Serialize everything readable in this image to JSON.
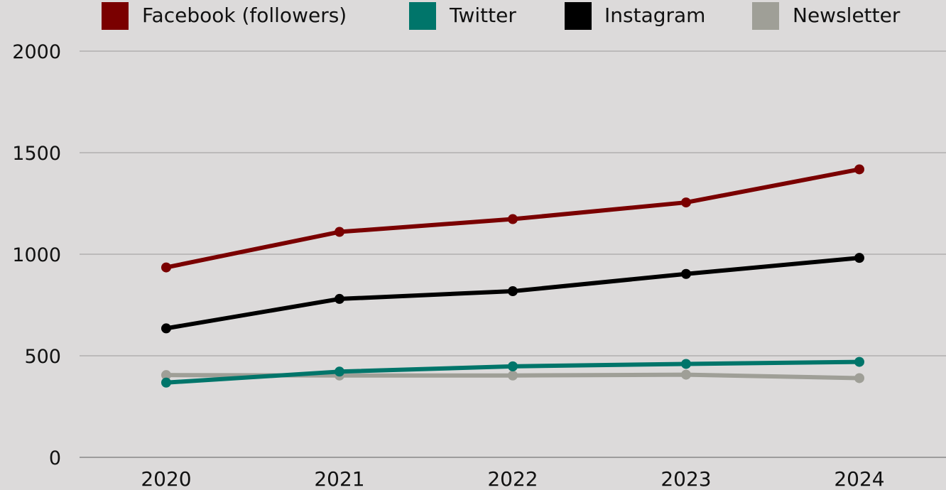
{
  "colors": {
    "background": "#dcdada",
    "gridline": "#a9a7a7",
    "baseline": "#777777",
    "text": "#111111"
  },
  "chart_data": {
    "type": "line",
    "x": [
      "2020",
      "2021",
      "2022",
      "2023",
      "2024"
    ],
    "ylim": [
      0,
      2000
    ],
    "yticks": [
      0,
      500,
      1000,
      1500,
      2000
    ],
    "grid": true,
    "legend_position": "top",
    "series": [
      {
        "name": "Facebook (followers)",
        "color": "#7a0000",
        "values": [
          935,
          1110,
          1173,
          1255,
          1418
        ]
      },
      {
        "name": "Twitter",
        "color": "#00756a",
        "values": [
          368,
          422,
          448,
          460,
          470
        ]
      },
      {
        "name": "Instagram",
        "color": "#000000",
        "values": [
          635,
          780,
          818,
          903,
          982
        ]
      },
      {
        "name": "Newsletter",
        "color": "#9f9f97",
        "values": [
          405,
          403,
          403,
          407,
          390
        ]
      }
    ]
  }
}
